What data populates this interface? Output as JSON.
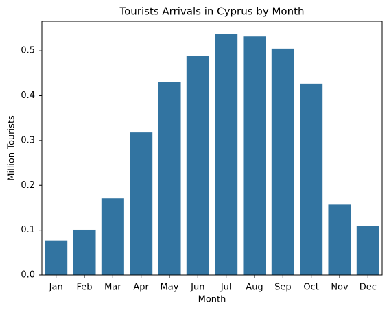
{
  "chart_data": {
    "type": "bar",
    "title": "Tourists Arrivals in Cyprus by Month",
    "x_label": "Month",
    "y_label": "Million Tourists",
    "categories": [
      "Jan",
      "Feb",
      "Mar",
      "Apr",
      "May",
      "Jun",
      "Jul",
      "Aug",
      "Sep",
      "Oct",
      "Nov",
      "Dec"
    ],
    "values": [
      0.077,
      0.101,
      0.171,
      0.318,
      0.431,
      0.488,
      0.537,
      0.532,
      0.505,
      0.427,
      0.157,
      0.109
    ],
    "color": "#3274a1",
    "ylim": [
      0,
      0.566
    ],
    "yticks": [
      {
        "value": 0,
        "label": "0.0"
      },
      0.1,
      0.2,
      0.3,
      0.4,
      0.5
    ],
    "grid": false
  }
}
